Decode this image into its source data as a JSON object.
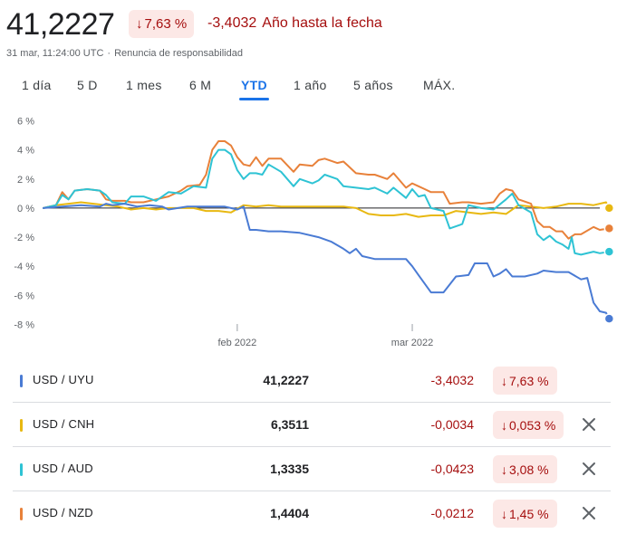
{
  "header": {
    "price": "41,2227",
    "change_pct": "7,63 %",
    "change_abs": "-3,4032",
    "period_label": "Año hasta la fecha",
    "timestamp": "31 mar, 11:24:00 UTC",
    "disclaimer": "Renuncia de responsabilidad",
    "separator": "·",
    "down_arrow": "↓"
  },
  "tabs": [
    {
      "label": "1 día"
    },
    {
      "label": "5 D"
    },
    {
      "label": "1 mes"
    },
    {
      "label": "6 M"
    },
    {
      "label": "YTD",
      "active": true
    },
    {
      "label": "1 año"
    },
    {
      "label": "5 años"
    },
    {
      "label": "MÁX."
    }
  ],
  "colors": {
    "uyu": "#4a7bd4",
    "cnh": "#e8b811",
    "aud": "#2ec3d4",
    "nzd": "#e8813a",
    "negative": "#a50e0e",
    "accent": "#1a73e8"
  },
  "chart_data": {
    "type": "line",
    "yunit": "%",
    "ylim": [
      -8,
      6
    ],
    "yticks": [
      "6 %",
      "4 %",
      "2 %",
      "0 %",
      "-2 %",
      "-4 %",
      "-6 %",
      "-8 %"
    ],
    "ytick_values": [
      6,
      4,
      2,
      0,
      -2,
      -4,
      -6,
      -8
    ],
    "xticks": [
      "feb 2022",
      "mar 2022"
    ],
    "xtick_days": [
      31,
      59
    ],
    "x_range_days": [
      0,
      89
    ],
    "grid": false,
    "zero_line": true,
    "series": [
      {
        "name": "USD / UYU",
        "color": "#4a7bd4",
        "points": [
          [
            0,
            0
          ],
          [
            3,
            0.1
          ],
          [
            6,
            0.2
          ],
          [
            9,
            0.1
          ],
          [
            10,
            0.3
          ],
          [
            11,
            0.2
          ],
          [
            13,
            0.3
          ],
          [
            15,
            0.1
          ],
          [
            17,
            0.2
          ],
          [
            19,
            0.1
          ],
          [
            20,
            -0.1
          ],
          [
            23,
            0.1
          ],
          [
            25,
            0.1
          ],
          [
            27,
            0.1
          ],
          [
            29,
            0.1
          ],
          [
            31,
            -0.1
          ],
          [
            32,
            0.1
          ],
          [
            33,
            -1.5
          ],
          [
            34,
            -1.5
          ],
          [
            36,
            -1.6
          ],
          [
            38,
            -1.6
          ],
          [
            41,
            -1.7
          ],
          [
            44,
            -2.0
          ],
          [
            46,
            -2.3
          ],
          [
            48,
            -2.8
          ],
          [
            49,
            -3.1
          ],
          [
            50,
            -2.8
          ],
          [
            51,
            -3.3
          ],
          [
            53,
            -3.5
          ],
          [
            55,
            -3.5
          ],
          [
            57,
            -3.5
          ],
          [
            58,
            -3.5
          ],
          [
            59,
            -4.0
          ],
          [
            60,
            -4.6
          ],
          [
            62,
            -5.8
          ],
          [
            64,
            -5.8
          ],
          [
            66,
            -4.7
          ],
          [
            68,
            -4.6
          ],
          [
            69,
            -3.8
          ],
          [
            71,
            -3.8
          ],
          [
            72,
            -4.7
          ],
          [
            73,
            -4.5
          ],
          [
            74,
            -4.2
          ],
          [
            75,
            -4.7
          ],
          [
            77,
            -4.7
          ],
          [
            79,
            -4.5
          ],
          [
            80,
            -4.3
          ],
          [
            82,
            -4.4
          ],
          [
            84,
            -4.4
          ],
          [
            86,
            -4.9
          ],
          [
            87,
            -4.8
          ],
          [
            88,
            -6.5
          ],
          [
            89,
            -7.1
          ],
          [
            90,
            -7.2
          ],
          [
            90.5,
            -7.6
          ]
        ]
      },
      {
        "name": "USD / CNH",
        "color": "#e8b811",
        "points": [
          [
            0,
            0
          ],
          [
            2,
            0.2
          ],
          [
            4,
            0.3
          ],
          [
            6,
            0.4
          ],
          [
            8,
            0.3
          ],
          [
            10,
            0.2
          ],
          [
            12,
            0.1
          ],
          [
            14,
            -0.1
          ],
          [
            16,
            0
          ],
          [
            18,
            -0.1
          ],
          [
            20,
            0
          ],
          [
            22,
            0
          ],
          [
            24,
            0
          ],
          [
            26,
            -0.2
          ],
          [
            28,
            -0.2
          ],
          [
            30,
            -0.3
          ],
          [
            32,
            0.2
          ],
          [
            34,
            0.1
          ],
          [
            36,
            0.2
          ],
          [
            38,
            0.1
          ],
          [
            40,
            0.1
          ],
          [
            42,
            0.1
          ],
          [
            44,
            0.1
          ],
          [
            46,
            0.1
          ],
          [
            48,
            0.1
          ],
          [
            50,
            0
          ],
          [
            52,
            -0.4
          ],
          [
            54,
            -0.5
          ],
          [
            56,
            -0.5
          ],
          [
            58,
            -0.4
          ],
          [
            60,
            -0.6
          ],
          [
            62,
            -0.5
          ],
          [
            64,
            -0.5
          ],
          [
            66,
            -0.2
          ],
          [
            68,
            -0.3
          ],
          [
            70,
            -0.4
          ],
          [
            72,
            -0.3
          ],
          [
            74,
            -0.4
          ],
          [
            76,
            0.2
          ],
          [
            78,
            0.1
          ],
          [
            80,
            0
          ],
          [
            82,
            0.1
          ],
          [
            84,
            0.3
          ],
          [
            86,
            0.3
          ],
          [
            88,
            0.2
          ],
          [
            90,
            0.4
          ],
          [
            90.5,
            0
          ]
        ]
      },
      {
        "name": "USD / AUD",
        "color": "#2ec3d4",
        "points": [
          [
            0,
            0
          ],
          [
            2,
            0.2
          ],
          [
            3,
            0.9
          ],
          [
            4,
            0.6
          ],
          [
            5,
            1.2
          ],
          [
            7,
            1.3
          ],
          [
            9,
            1.2
          ],
          [
            10,
            0.9
          ],
          [
            11,
            0.4
          ],
          [
            13,
            0.3
          ],
          [
            14,
            0.8
          ],
          [
            16,
            0.8
          ],
          [
            18,
            0.5
          ],
          [
            20,
            1.1
          ],
          [
            22,
            1.0
          ],
          [
            24,
            1.5
          ],
          [
            26,
            1.4
          ],
          [
            27,
            3.4
          ],
          [
            28,
            4.0
          ],
          [
            29,
            4.0
          ],
          [
            30,
            3.7
          ],
          [
            31,
            2.6
          ],
          [
            32,
            2.0
          ],
          [
            33,
            2.4
          ],
          [
            34,
            2.4
          ],
          [
            35,
            2.3
          ],
          [
            36,
            3.0
          ],
          [
            38,
            2.5
          ],
          [
            40,
            1.5
          ],
          [
            41,
            2.0
          ],
          [
            43,
            1.7
          ],
          [
            44,
            1.9
          ],
          [
            45,
            2.3
          ],
          [
            47,
            2.0
          ],
          [
            48,
            1.5
          ],
          [
            50,
            1.4
          ],
          [
            52,
            1.3
          ],
          [
            53,
            1.4
          ],
          [
            55,
            1.0
          ],
          [
            56,
            1.4
          ],
          [
            58,
            0.7
          ],
          [
            59,
            1.3
          ],
          [
            60,
            0.8
          ],
          [
            61,
            0.9
          ],
          [
            62,
            0
          ],
          [
            64,
            -0.2
          ],
          [
            65,
            -1.4
          ],
          [
            67,
            -1.1
          ],
          [
            68,
            0.2
          ],
          [
            70,
            0
          ],
          [
            72,
            -0.1
          ],
          [
            74,
            0.6
          ],
          [
            75,
            1.0
          ],
          [
            76,
            0.2
          ],
          [
            78,
            -0.3
          ],
          [
            79,
            -1.8
          ],
          [
            80,
            -2.2
          ],
          [
            81,
            -1.9
          ],
          [
            82,
            -2.3
          ],
          [
            83,
            -2.5
          ],
          [
            84,
            -2.8
          ],
          [
            84.5,
            -2.0
          ],
          [
            85,
            -3.1
          ],
          [
            86,
            -3.2
          ],
          [
            88,
            -3.0
          ],
          [
            89,
            -3.1
          ],
          [
            90.5,
            -3.0
          ]
        ]
      },
      {
        "name": "USD / NZD",
        "color": "#e8813a",
        "points": [
          [
            0,
            0
          ],
          [
            2,
            0.2
          ],
          [
            3,
            1.1
          ],
          [
            4,
            0.6
          ],
          [
            5,
            1.2
          ],
          [
            7,
            1.3
          ],
          [
            9,
            1.2
          ],
          [
            10,
            0.6
          ],
          [
            11,
            0.5
          ],
          [
            13,
            0.5
          ],
          [
            14,
            0.4
          ],
          [
            16,
            0.4
          ],
          [
            18,
            0.6
          ],
          [
            20,
            0.8
          ],
          [
            22,
            1.2
          ],
          [
            23,
            1.5
          ],
          [
            25,
            1.6
          ],
          [
            26,
            2.3
          ],
          [
            27,
            4.0
          ],
          [
            28,
            4.6
          ],
          [
            29,
            4.6
          ],
          [
            30,
            4.3
          ],
          [
            31,
            3.5
          ],
          [
            32,
            3.0
          ],
          [
            33,
            2.9
          ],
          [
            34,
            3.5
          ],
          [
            35,
            2.9
          ],
          [
            36,
            3.4
          ],
          [
            38,
            3.4
          ],
          [
            40,
            2.5
          ],
          [
            41,
            3.0
          ],
          [
            43,
            2.9
          ],
          [
            44,
            3.3
          ],
          [
            45,
            3.4
          ],
          [
            47,
            3.1
          ],
          [
            48,
            3.2
          ],
          [
            50,
            2.4
          ],
          [
            52,
            2.3
          ],
          [
            53,
            2.3
          ],
          [
            55,
            2.0
          ],
          [
            56,
            2.4
          ],
          [
            58,
            1.4
          ],
          [
            59,
            1.7
          ],
          [
            60,
            1.5
          ],
          [
            61,
            1.3
          ],
          [
            62,
            1.1
          ],
          [
            64,
            1.1
          ],
          [
            65,
            0.3
          ],
          [
            67,
            0.4
          ],
          [
            68,
            0.4
          ],
          [
            70,
            0.3
          ],
          [
            72,
            0.4
          ],
          [
            73,
            1.0
          ],
          [
            74,
            1.3
          ],
          [
            75,
            1.2
          ],
          [
            76,
            0.6
          ],
          [
            78,
            0.3
          ],
          [
            79,
            -0.9
          ],
          [
            80,
            -1.3
          ],
          [
            81,
            -1.3
          ],
          [
            82,
            -1.6
          ],
          [
            83,
            -1.6
          ],
          [
            84,
            -2.1
          ],
          [
            85,
            -1.8
          ],
          [
            86,
            -1.8
          ],
          [
            88,
            -1.3
          ],
          [
            89,
            -1.5
          ],
          [
            90.5,
            -1.4
          ]
        ]
      }
    ]
  },
  "rows": [
    {
      "pair": "USD / UYU",
      "rate": "41,2227",
      "delta": "-3,4032",
      "pct": "7,63 %",
      "color": "#4a7bd4",
      "removable": false
    },
    {
      "pair": "USD / CNH",
      "rate": "6,3511",
      "delta": "-0,0034",
      "pct": "0,053 %",
      "color": "#e8b811",
      "removable": true
    },
    {
      "pair": "USD / AUD",
      "rate": "1,3335",
      "delta": "-0,0423",
      "pct": "3,08 %",
      "color": "#2ec3d4",
      "removable": true
    },
    {
      "pair": "USD / NZD",
      "rate": "1,4404",
      "delta": "-0,0212",
      "pct": "1,45 %",
      "color": "#e8813a",
      "removable": true
    }
  ]
}
